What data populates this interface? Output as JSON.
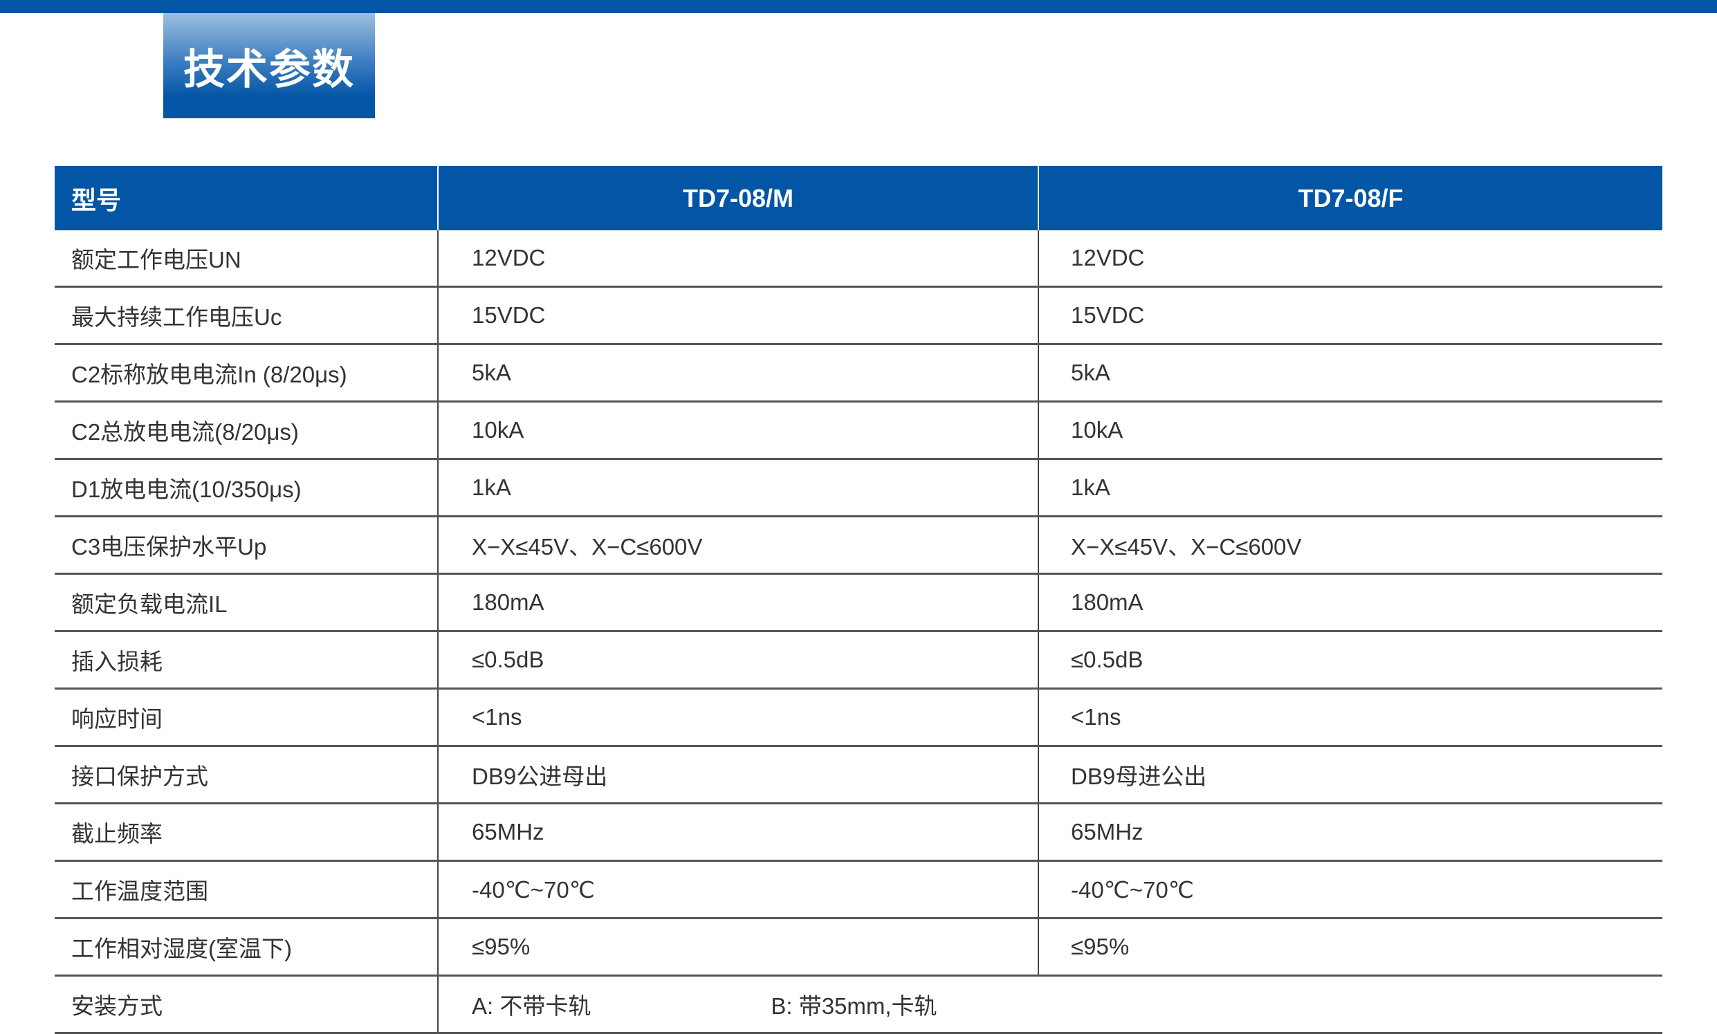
{
  "title": "技术参数",
  "colors": {
    "brand_blue": "#0355a6"
  },
  "table": {
    "headers": [
      "型号",
      "TD7-08/M",
      "TD7-08/F"
    ],
    "rows": [
      [
        "额定工作电压UN",
        "12VDC",
        "12VDC"
      ],
      [
        "最大持续工作电压Uc",
        "15VDC",
        "15VDC"
      ],
      [
        "C2标称放电电流In (8/20μs)",
        "5kA",
        "5kA"
      ],
      [
        "C2总放电电流(8/20μs)",
        "10kA",
        "10kA"
      ],
      [
        "D1放电电流(10/350μs)",
        "1kA",
        "1kA"
      ],
      [
        "C3电压保护水平Up",
        "X−X≤45V、X−C≤600V",
        "X−X≤45V、X−C≤600V"
      ],
      [
        "额定负载电流IL",
        "180mA",
        "180mA"
      ],
      [
        "插入损耗",
        "≤0.5dB",
        "≤0.5dB"
      ],
      [
        "响应时间",
        "<1ns",
        "<1ns"
      ],
      [
        "接口保护方式",
        "DB9公进母出",
        "DB9母进公出"
      ],
      [
        "截止频率",
        "65MHz",
        "65MHz"
      ],
      [
        "工作温度范围",
        "-40℃~70℃",
        "-40℃~70℃"
      ],
      [
        "工作相对湿度(室温下)",
        "≤95%",
        "≤95%"
      ]
    ],
    "install": {
      "label": "安装方式",
      "option_a": "A: 不带卡轨",
      "option_b": "B: 带35mm,卡轨"
    }
  }
}
